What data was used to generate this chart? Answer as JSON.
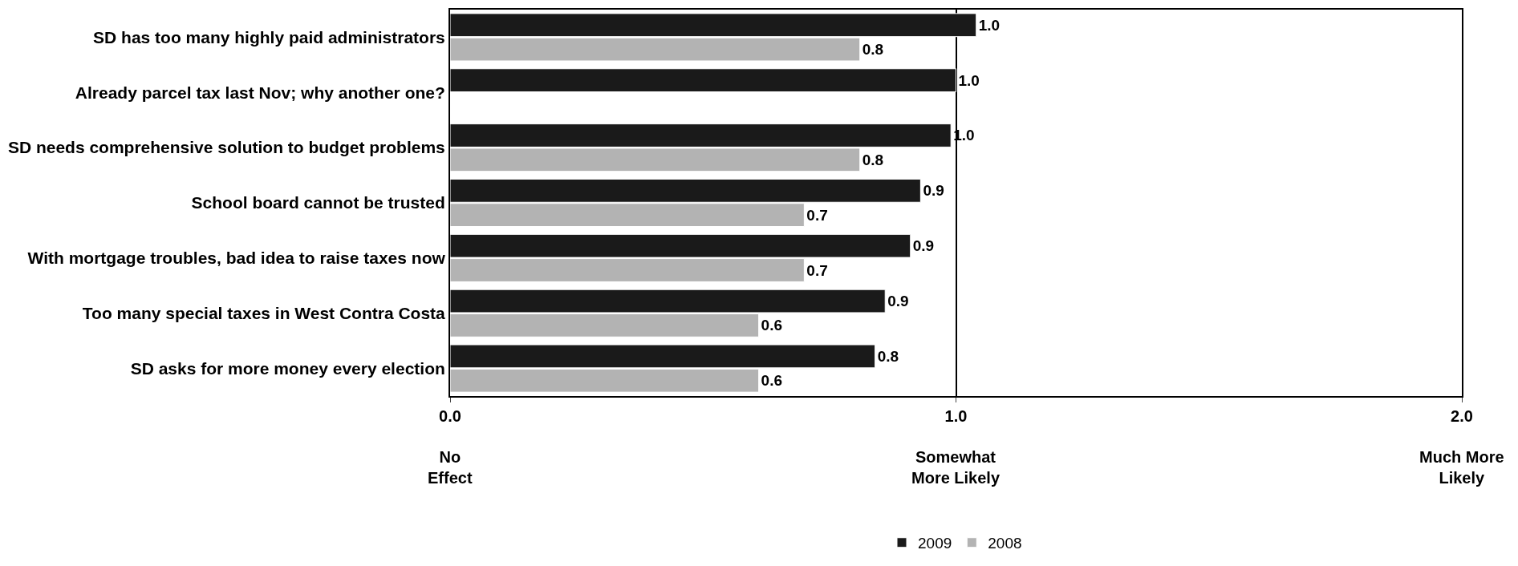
{
  "chart_data": {
    "type": "bar",
    "orientation": "horizontal",
    "categories": [
      "SD has too many highly paid administrators",
      "Already parcel tax last Nov; why another one?",
      "SD needs comprehensive solution to budget problems",
      "School board cannot be trusted",
      "With mortgage troubles, bad idea to raise taxes now",
      "Too many special taxes in West Contra Costa",
      "SD asks for more money every election"
    ],
    "series": [
      {
        "name": "2009",
        "color": "#1a1a1a",
        "values": [
          1.04,
          1.0,
          0.99,
          0.93,
          0.91,
          0.86,
          0.84
        ],
        "value_labels": [
          "1.0",
          "1.0",
          "1.0",
          "0.9",
          "0.9",
          "0.9",
          "0.8"
        ]
      },
      {
        "name": "2008",
        "color": "#b3b3b3",
        "values": [
          0.81,
          null,
          0.81,
          0.7,
          0.7,
          0.61,
          0.61
        ],
        "value_labels": [
          "0.8",
          null,
          "0.8",
          "0.7",
          "0.7",
          "0.6",
          "0.6"
        ]
      }
    ],
    "xlim": [
      0,
      2
    ],
    "xticks": [
      {
        "value": 0,
        "label": "0.0"
      },
      {
        "value": 1,
        "label": "1.0"
      },
      {
        "value": 2,
        "label": "2.0"
      }
    ],
    "annotations": [
      "No\nEffect",
      "Somewhat\nMore Likely",
      "Much More\nLikely"
    ],
    "grid": "x",
    "legend": "bottom"
  }
}
